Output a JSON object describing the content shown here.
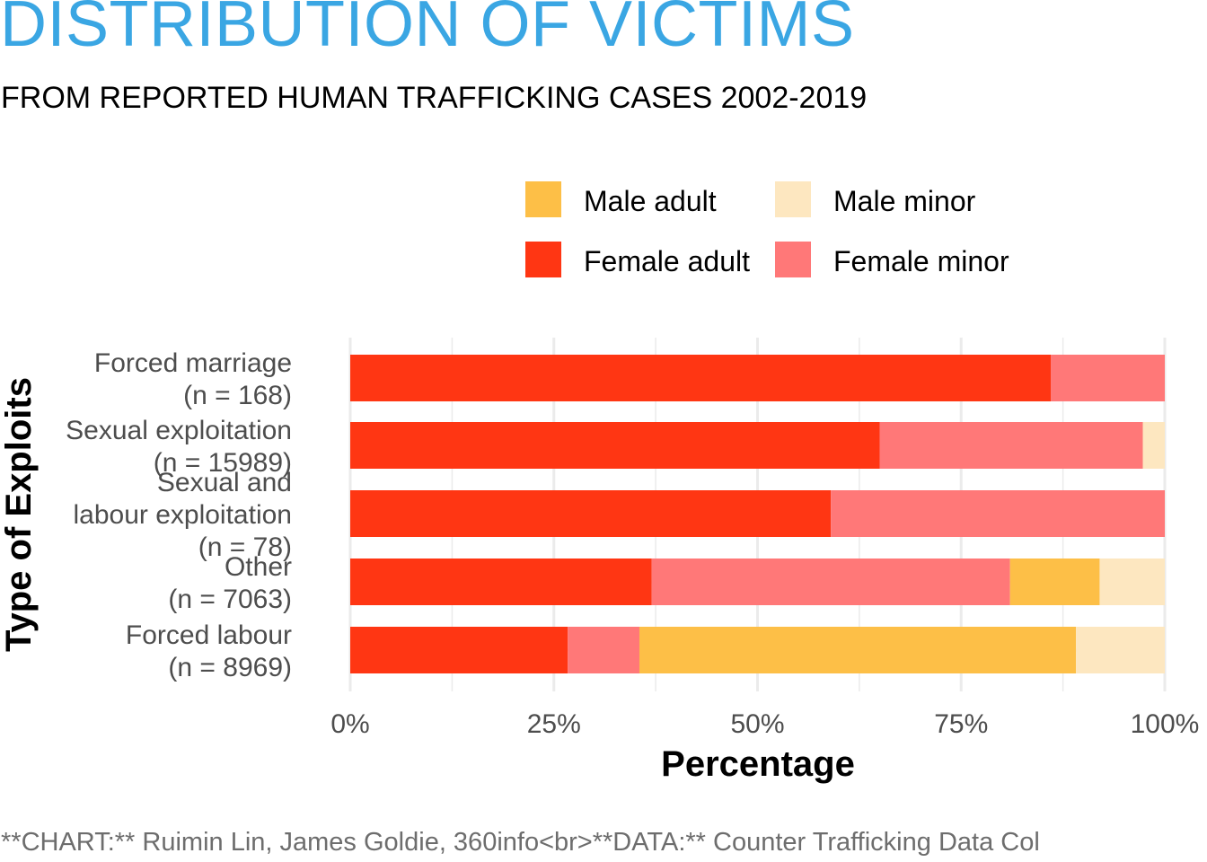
{
  "title": "DISTRIBUTION OF VICTIMS",
  "subtitle": "FROM REPORTED HUMAN TRAFFICKING CASES 2002-2019",
  "caption": "**CHART:** Ruimin Lin, James Goldie, 360info<br>**DATA:** Counter Trafficking Data Col",
  "colors": {
    "title": "#3aa6e3",
    "male_adult": "#fdbf47",
    "male_minor": "#fde7c0",
    "female_adult": "#ff3613",
    "female_minor": "#ff7878",
    "grid": "#ebebeb"
  },
  "legend": [
    {
      "label": "Male adult",
      "color": "#fdbf47"
    },
    {
      "label": "Male minor",
      "color": "#fde7c0"
    },
    {
      "label": "Female adult",
      "color": "#ff3613"
    },
    {
      "label": "Female minor",
      "color": "#ff7878"
    }
  ],
  "chart_data": {
    "type": "bar",
    "orientation": "horizontal",
    "stacked": "percent",
    "xlabel": "Percentage",
    "ylabel": "Type of Exploits",
    "xlim": [
      0,
      100
    ],
    "x_ticks": [
      "0%",
      "25%",
      "50%",
      "75%",
      "100%"
    ],
    "categories": [
      {
        "label_lines": [
          "Forced marriage",
          "(n = 168)"
        ]
      },
      {
        "label_lines": [
          "Sexual exploitation",
          "(n = 15989)"
        ]
      },
      {
        "label_lines": [
          "Sexual and",
          "labour exploitation",
          "(n = 78)"
        ]
      },
      {
        "label_lines": [
          "Other",
          "(n = 7063)"
        ]
      },
      {
        "label_lines": [
          "Forced labour",
          "(n = 8969)"
        ]
      }
    ],
    "series": [
      {
        "name": "Female adult",
        "color": "#ff3613",
        "values": [
          86,
          65,
          59,
          37,
          26.7
        ]
      },
      {
        "name": "Female minor",
        "color": "#ff7878",
        "values": [
          14,
          32.3,
          41,
          44,
          8.8
        ]
      },
      {
        "name": "Male adult",
        "color": "#fdbf47",
        "values": [
          0,
          0,
          0,
          11,
          53.6
        ]
      },
      {
        "name": "Male minor",
        "color": "#fde7c0",
        "values": [
          0,
          2.7,
          0,
          8,
          10.9
        ]
      }
    ],
    "legend_position": "top",
    "grid": true
  }
}
